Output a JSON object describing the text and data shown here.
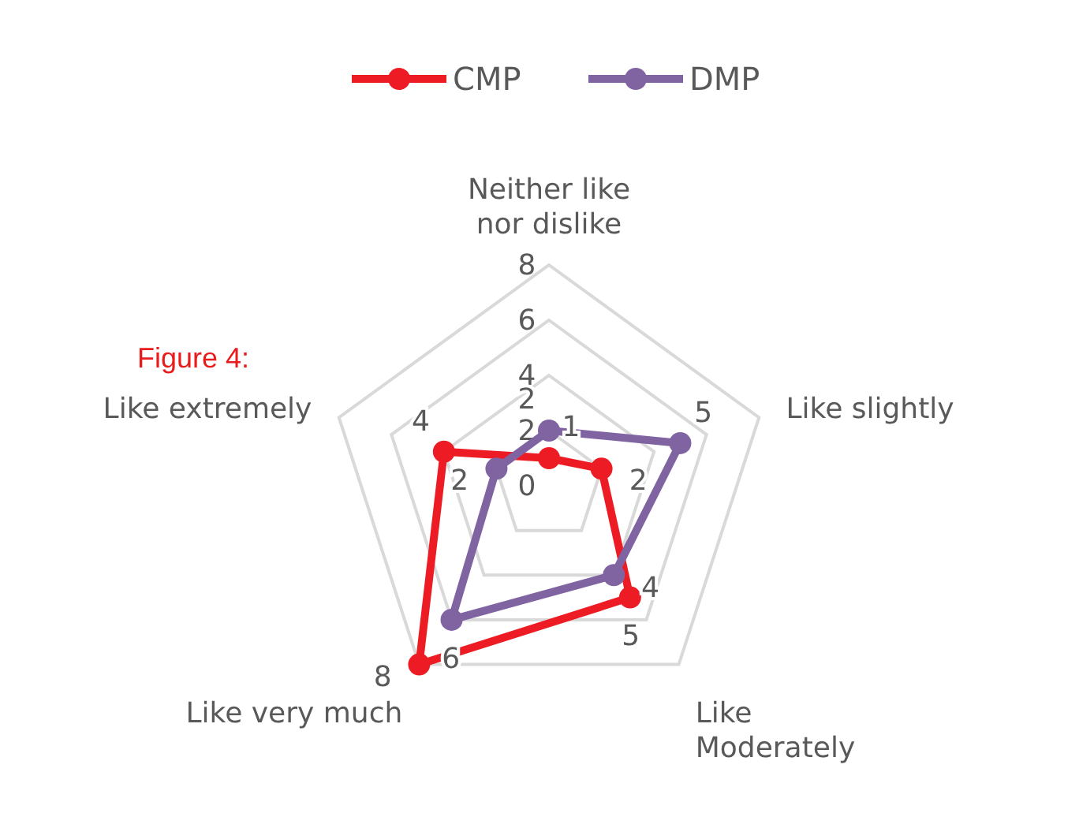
{
  "chart_data": {
    "type": "radar",
    "categories": [
      "Neither like nor dislike",
      "Like slightly",
      "Like Moderately",
      "Like very much",
      "Like extremely"
    ],
    "series": [
      {
        "name": "CMP",
        "color": "#ed1c24",
        "values": [
          1,
          2,
          5,
          8,
          4
        ]
      },
      {
        "name": "DMP",
        "color": "#8064a2",
        "values": [
          2,
          5,
          4,
          6,
          2
        ]
      }
    ],
    "ylim": [
      0,
      8
    ],
    "yticks": [
      0,
      2,
      4,
      6,
      8
    ],
    "grid": true,
    "legend": "top",
    "marker": "circle",
    "data_labels": true,
    "annotations": [
      "Figure 4:"
    ]
  }
}
